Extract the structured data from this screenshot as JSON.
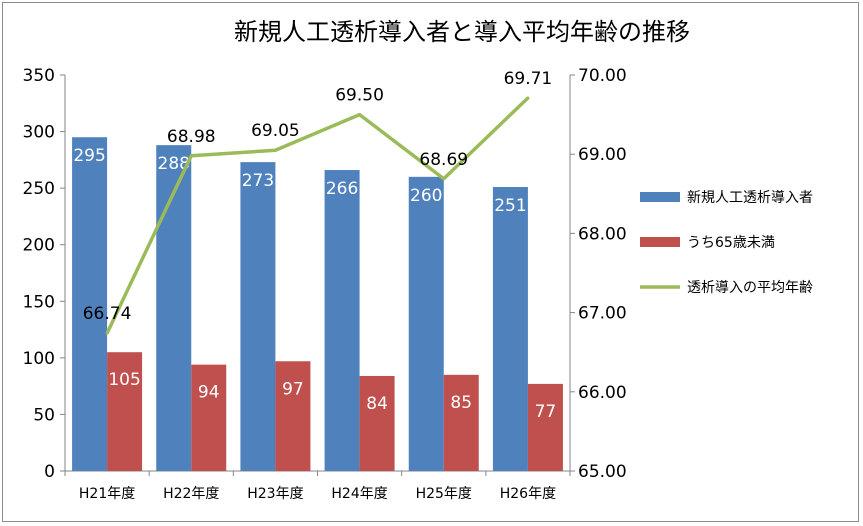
{
  "chart_data": {
    "type": "bar",
    "title": "新規人工透析導入者と導入平均年齢の推移",
    "categories": [
      "H21年度",
      "H22年度",
      "H23年度",
      "H24年度",
      "H25年度",
      "H26年度"
    ],
    "series": [
      {
        "name": "新規人工透析導入者",
        "type": "bar",
        "axis": "left",
        "color": "#4f81bd",
        "values": [
          295,
          288,
          273,
          266,
          260,
          251
        ],
        "labels": [
          "295",
          "288",
          "273",
          "266",
          "260",
          "251"
        ]
      },
      {
        "name": "うち65歳未満",
        "type": "bar",
        "axis": "left",
        "color": "#c0504d",
        "values": [
          105,
          94,
          97,
          84,
          85,
          77
        ],
        "labels": [
          "105",
          "94",
          "97",
          "84",
          "85",
          "77"
        ]
      },
      {
        "name": "透析導入の平均年齢",
        "type": "line",
        "axis": "right",
        "color": "#9bbb59",
        "values": [
          66.74,
          68.98,
          69.05,
          69.5,
          68.69,
          69.71
        ],
        "labels": [
          "66.74",
          "68.98",
          "69.05",
          "69.50",
          "68.69",
          "69.71"
        ]
      }
    ],
    "y_left": {
      "ylim": [
        0,
        350
      ],
      "ticks": [
        "0",
        "50",
        "100",
        "150",
        "200",
        "250",
        "300",
        "350"
      ]
    },
    "y_right": {
      "ylim": [
        65,
        70
      ],
      "ticks": [
        "65.00",
        "66.00",
        "67.00",
        "68.00",
        "69.00",
        "70.00"
      ]
    },
    "grid": false,
    "legend": "right"
  }
}
